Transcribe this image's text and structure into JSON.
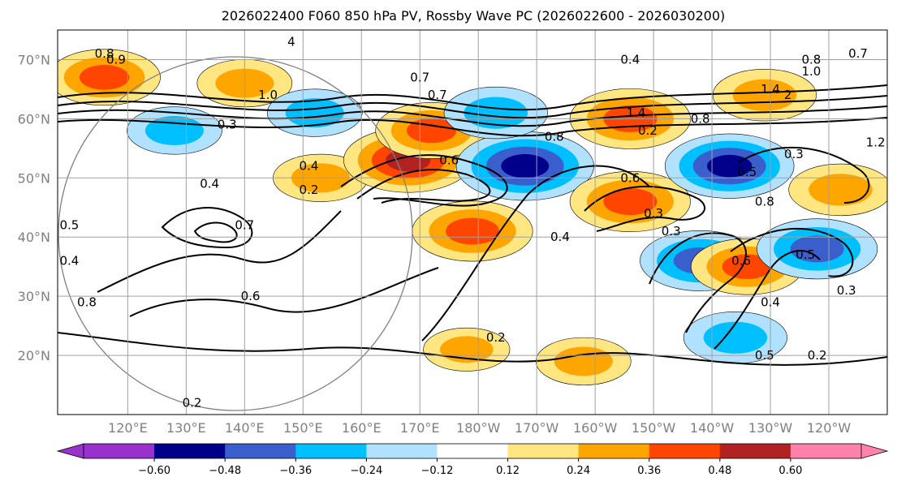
{
  "chart_data": {
    "type": "heatmap",
    "title": "2026022400 F060 850 hPa PV, Rossby Wave PC (2026022600 - 2026030200)",
    "xlabel": "",
    "ylabel": "",
    "projection": "PlateCarree, dateline-centered",
    "xlim": [
      108,
      250
    ],
    "ylim": [
      10,
      75
    ],
    "grid": true,
    "lat_ticks": [
      {
        "value": 20,
        "label": "20°N"
      },
      {
        "value": 30,
        "label": "30°N"
      },
      {
        "value": 40,
        "label": "40°N"
      },
      {
        "value": 50,
        "label": "50°N"
      },
      {
        "value": 60,
        "label": "60°N"
      },
      {
        "value": 70,
        "label": "70°N"
      }
    ],
    "lon_ticks": [
      {
        "value": 120,
        "label": "120°E"
      },
      {
        "value": 130,
        "label": "130°E"
      },
      {
        "value": 140,
        "label": "140°E"
      },
      {
        "value": 150,
        "label": "150°E"
      },
      {
        "value": 160,
        "label": "160°E"
      },
      {
        "value": 170,
        "label": "170°E"
      },
      {
        "value": 180,
        "label": "180°W"
      },
      {
        "value": 190,
        "label": "170°W"
      },
      {
        "value": 200,
        "label": "160°W"
      },
      {
        "value": 210,
        "label": "150°W"
      },
      {
        "value": 220,
        "label": "140°W"
      },
      {
        "value": 230,
        "label": "130°W"
      },
      {
        "value": 240,
        "label": "120°W"
      }
    ],
    "colorbar": {
      "orientation": "horizontal",
      "extend": "both",
      "levels": [
        -0.6,
        -0.48,
        -0.36,
        -0.24,
        -0.12,
        0.12,
        0.24,
        0.36,
        0.48,
        0.6
      ],
      "tick_labels": [
        "−0.60",
        "−0.48",
        "−0.36",
        "−0.24",
        "−0.12",
        "0.12",
        "0.24",
        "0.36",
        "0.48",
        "0.60"
      ],
      "colors": [
        "#9932cc",
        "#00008b",
        "#3a5fcd",
        "#00bfff",
        "#b0e2ff",
        "#ffffff",
        "#ffe680",
        "#ffa500",
        "#ff4500",
        "#b22222",
        "#ff82ab"
      ]
    },
    "shaded_anomalies": [
      {
        "lon": 116,
        "lat": 67,
        "value": 0.4
      },
      {
        "lon": 140,
        "lat": 66,
        "value": 0.3
      },
      {
        "lon": 128,
        "lat": 58,
        "value": -0.3
      },
      {
        "lon": 152,
        "lat": 61,
        "value": -0.3
      },
      {
        "lon": 153,
        "lat": 50,
        "value": 0.3
      },
      {
        "lon": 168,
        "lat": 53,
        "value": 0.5
      },
      {
        "lon": 172,
        "lat": 58,
        "value": 0.4
      },
      {
        "lon": 179,
        "lat": 41,
        "value": 0.45
      },
      {
        "lon": 188,
        "lat": 52,
        "value": -0.55
      },
      {
        "lon": 183,
        "lat": 61,
        "value": -0.35
      },
      {
        "lon": 206,
        "lat": 60,
        "value": 0.45
      },
      {
        "lon": 206,
        "lat": 46,
        "value": 0.45
      },
      {
        "lon": 223,
        "lat": 52,
        "value": -0.5
      },
      {
        "lon": 218,
        "lat": 36,
        "value": -0.45
      },
      {
        "lon": 226,
        "lat": 35,
        "value": 0.4
      },
      {
        "lon": 238,
        "lat": 38,
        "value": -0.45
      },
      {
        "lon": 224,
        "lat": 23,
        "value": -0.35
      },
      {
        "lon": 229,
        "lat": 64,
        "value": 0.35
      },
      {
        "lon": 242,
        "lat": 48,
        "value": 0.35
      },
      {
        "lon": 198,
        "lat": 19,
        "value": 0.3
      },
      {
        "lon": 178,
        "lat": 21,
        "value": 0.25
      }
    ],
    "contour_labels": [
      {
        "lon": 116,
        "lat": 71,
        "text": "0.8"
      },
      {
        "lon": 118,
        "lat": 70,
        "text": "0.9"
      },
      {
        "lon": 148,
        "lat": 73,
        "text": "4"
      },
      {
        "lon": 144,
        "lat": 64,
        "text": "1.0"
      },
      {
        "lon": 137,
        "lat": 59,
        "text": "0.3"
      },
      {
        "lon": 170,
        "lat": 67,
        "text": "0.7"
      },
      {
        "lon": 173,
        "lat": 64,
        "text": "0.7"
      },
      {
        "lon": 175,
        "lat": 53,
        "text": "0.6"
      },
      {
        "lon": 151,
        "lat": 52,
        "text": "0.4"
      },
      {
        "lon": 151,
        "lat": 48,
        "text": "0.2"
      },
      {
        "lon": 134,
        "lat": 49,
        "text": "0.4"
      },
      {
        "lon": 140,
        "lat": 42,
        "text": "0.7"
      },
      {
        "lon": 110,
        "lat": 42,
        "text": "0.5"
      },
      {
        "lon": 110,
        "lat": 36,
        "text": "0.4"
      },
      {
        "lon": 113,
        "lat": 29,
        "text": "0.8"
      },
      {
        "lon": 141,
        "lat": 30,
        "text": "0.6"
      },
      {
        "lon": 131,
        "lat": 12,
        "text": "0.2"
      },
      {
        "lon": 183,
        "lat": 23,
        "text": "0.2"
      },
      {
        "lon": 194,
        "lat": 40,
        "text": "0.4"
      },
      {
        "lon": 193,
        "lat": 57,
        "text": "0.8"
      },
      {
        "lon": 206,
        "lat": 70,
        "text": "0.4"
      },
      {
        "lon": 207,
        "lat": 61,
        "text": "1.4"
      },
      {
        "lon": 209,
        "lat": 58,
        "text": "0.2"
      },
      {
        "lon": 206,
        "lat": 50,
        "text": "0.6"
      },
      {
        "lon": 210,
        "lat": 44,
        "text": "0.3"
      },
      {
        "lon": 213,
        "lat": 41,
        "text": "0.3"
      },
      {
        "lon": 218,
        "lat": 60,
        "text": "0.8"
      },
      {
        "lon": 226,
        "lat": 51,
        "text": "0.5"
      },
      {
        "lon": 229,
        "lat": 46,
        "text": "0.8"
      },
      {
        "lon": 225,
        "lat": 36,
        "text": "0.6"
      },
      {
        "lon": 230,
        "lat": 29,
        "text": "0.4"
      },
      {
        "lon": 229,
        "lat": 20,
        "text": "0.5"
      },
      {
        "lon": 238,
        "lat": 20,
        "text": "0.2"
      },
      {
        "lon": 236,
        "lat": 37,
        "text": "0.5"
      },
      {
        "lon": 243,
        "lat": 31,
        "text": "0.3"
      },
      {
        "lon": 230,
        "lat": 65,
        "text": "1.4"
      },
      {
        "lon": 233,
        "lat": 64,
        "text": "2"
      },
      {
        "lon": 237,
        "lat": 70,
        "text": "0.8"
      },
      {
        "lon": 237,
        "lat": 68,
        "text": "1.0"
      },
      {
        "lon": 245,
        "lat": 71,
        "text": "0.7"
      },
      {
        "lon": 248,
        "lat": 56,
        "text": "1.2"
      },
      {
        "lon": 234,
        "lat": 54,
        "text": "0.3"
      }
    ]
  }
}
